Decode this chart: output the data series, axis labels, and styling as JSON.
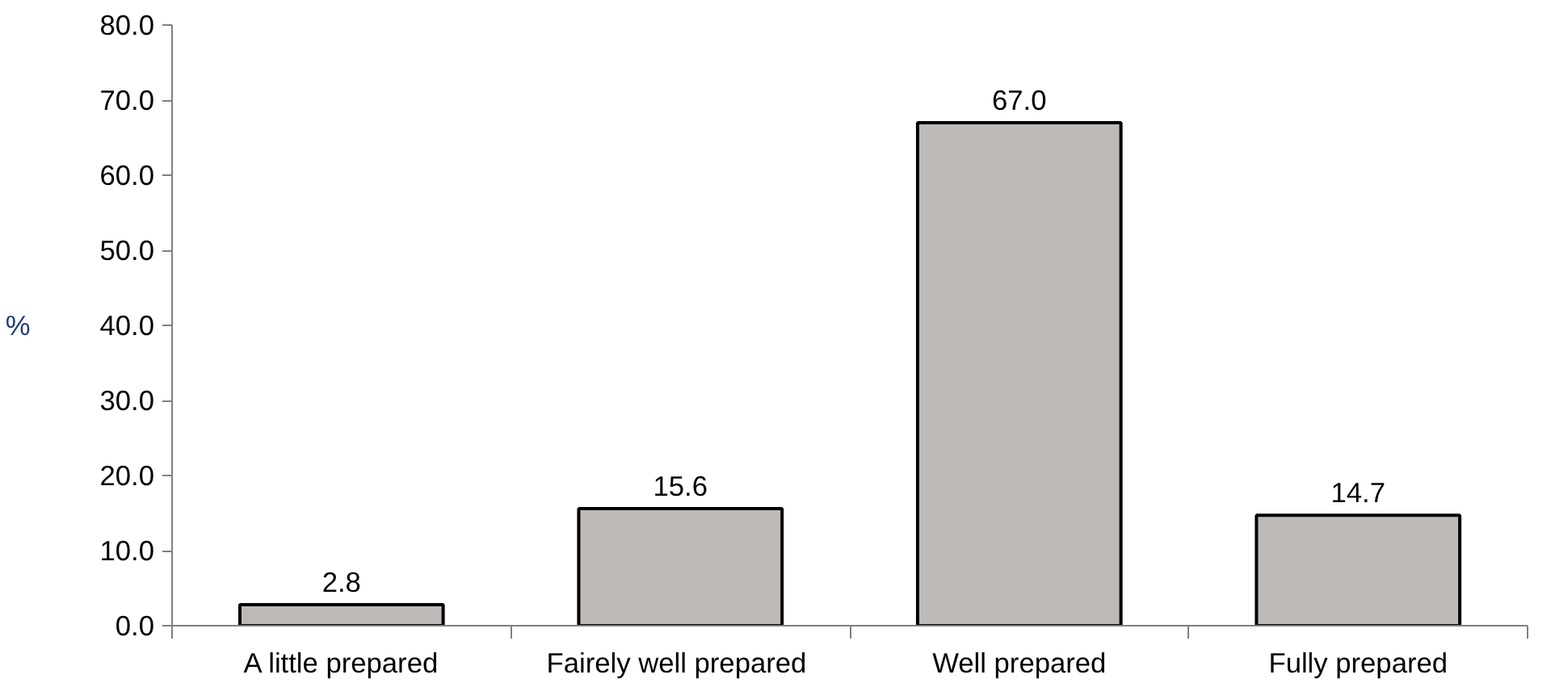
{
  "chart_data": {
    "type": "bar",
    "ylabel": "%",
    "categories": [
      "A little prepared",
      "Fairely  well prepared",
      "Well prepared",
      "Fully prepared"
    ],
    "values": [
      2.8,
      15.6,
      67.0,
      14.7
    ],
    "value_labels": [
      "2.8",
      "15.6",
      "67.0",
      "14.7"
    ],
    "color": "#bdbab7",
    "ylim": [
      0,
      80
    ],
    "yticks": [
      {
        "value": 0,
        "label": "0.0"
      },
      {
        "value": 10,
        "label": "10.0"
      },
      {
        "value": 20,
        "label": "20.0"
      },
      {
        "value": 30,
        "label": "30.0"
      },
      {
        "value": 40,
        "label": "40.0"
      },
      {
        "value": 50,
        "label": "50.0"
      },
      {
        "value": 60,
        "label": "60.0"
      },
      {
        "value": 70,
        "label": "70.0"
      },
      {
        "value": 80,
        "label": "80.0"
      }
    ],
    "grid": false
  }
}
